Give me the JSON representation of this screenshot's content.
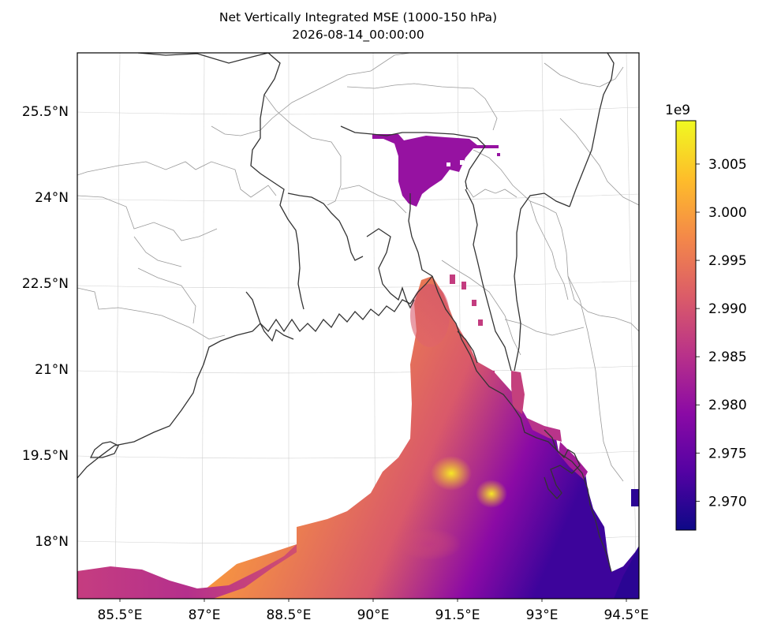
{
  "title": "Net Vertically Integrated MSE (1000-150 hPa)",
  "subtitle": "2026-08-14_00:00:00",
  "map": {
    "projection": "lambert-conformal",
    "extent_lon": [
      84.5,
      95.5
    ],
    "extent_lat": [
      17.0,
      26.5
    ],
    "gridlines": "on",
    "coastlines": "on",
    "borders": "on",
    "lon_ticks": [
      {
        "value": 85.5,
        "label": "85.5°E"
      },
      {
        "value": 87.0,
        "label": "87°E"
      },
      {
        "value": 88.5,
        "label": "88.5°E"
      },
      {
        "value": 90.0,
        "label": "90°E"
      },
      {
        "value": 91.5,
        "label": "91.5°E"
      },
      {
        "value": 93.0,
        "label": "93°E"
      },
      {
        "value": 94.5,
        "label": "94.5°E"
      }
    ],
    "lat_ticks": [
      {
        "value": 18.0,
        "label": "18°N"
      },
      {
        "value": 19.5,
        "label": "19.5°N"
      },
      {
        "value": 21.0,
        "label": "21°N"
      },
      {
        "value": 22.5,
        "label": "22.5°N"
      },
      {
        "value": 24.0,
        "label": "24°N"
      },
      {
        "value": 25.5,
        "label": "25.5°N"
      }
    ],
    "field_colormap": "plasma",
    "field_range": [
      2967000000.0,
      3009500000.0
    ]
  },
  "colorbar": {
    "multiplier": "1e9",
    "ticks": [
      {
        "value": 2.97,
        "label": "2.970"
      },
      {
        "value": 2.975,
        "label": "2.975"
      },
      {
        "value": 2.98,
        "label": "2.980"
      },
      {
        "value": 2.985,
        "label": "2.985"
      },
      {
        "value": 2.99,
        "label": "2.990"
      },
      {
        "value": 2.995,
        "label": "2.995"
      },
      {
        "value": 3.0,
        "label": "3.000"
      },
      {
        "value": 3.005,
        "label": "3.005"
      }
    ],
    "min": 2.967,
    "max": 3.0095,
    "colors": [
      "#0d0887",
      "#5402a3",
      "#8b0aa5",
      "#b93289",
      "#db5c68",
      "#f48849",
      "#febd2a",
      "#f0f921"
    ]
  }
}
